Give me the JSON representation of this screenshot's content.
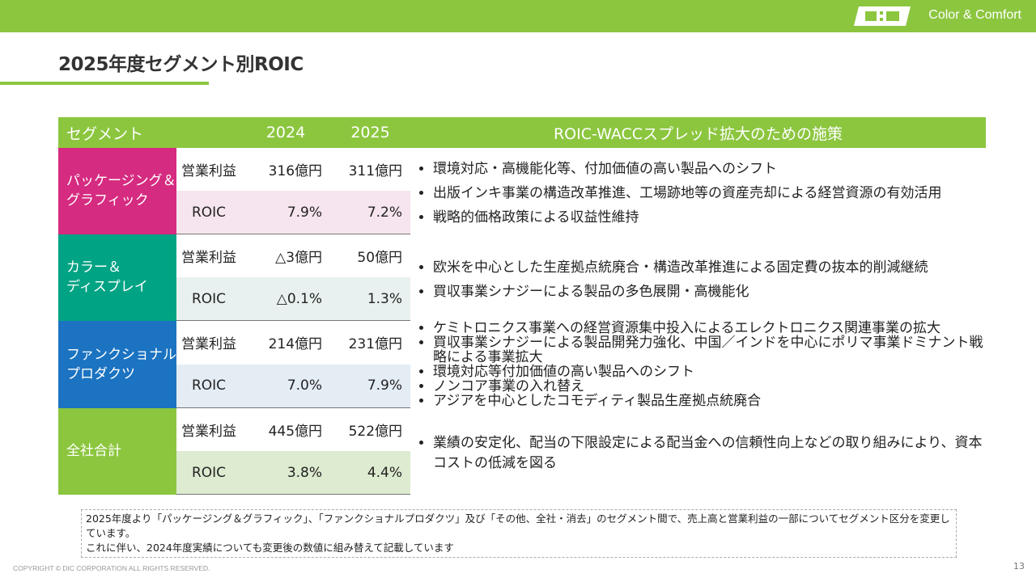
{
  "header": {
    "brand": "Color & Comfort"
  },
  "title": "2025年度セグメント別ROIC",
  "table": {
    "columns": [
      "セグメント",
      "2024",
      "2025",
      "ROIC-WACCスプレッド拡大のための施策"
    ],
    "segments": [
      {
        "name": [
          "パッケージング＆",
          "グラフィック"
        ],
        "color": "#d52b80",
        "shade": "#f6e5ee",
        "shade_top": false,
        "rows": [
          {
            "label": "営業利益",
            "v2024": "316億円",
            "v2025": "311億円"
          },
          {
            "label": "ROIC",
            "v2024": "7.9%",
            "v2025": "7.2%"
          }
        ],
        "measures": [
          "環境対応・高機能化等、付加価値の高い製品へのシフト",
          "出版インキ事業の構造改革推進、工場跡地等の資産売却による経営資源の有効活用",
          "戦略的価格政策による収益性維持"
        ]
      },
      {
        "name": [
          "カラー＆",
          "ディスプレイ"
        ],
        "color": "#00a384",
        "shade": "#e8f1ef",
        "shade_top": false,
        "rows": [
          {
            "label": "営業利益",
            "v2024": "△3億円",
            "v2025": "50億円"
          },
          {
            "label": "ROIC",
            "v2024": "△0.1%",
            "v2025": "1.3%"
          }
        ],
        "measures": [
          "欧米を中心とした生産拠点統廃合・構造改革推進による固定費の抜本的削減継続",
          "買収事業シナジーによる製品の多色展開・高機能化"
        ]
      },
      {
        "name": [
          "ファンクショナル",
          "プロダクツ"
        ],
        "color": "#1b73c1",
        "shade": "#e4ecf4",
        "shade_top": false,
        "rows": [
          {
            "label": "営業利益",
            "v2024": "214億円",
            "v2025": "231億円"
          },
          {
            "label": "ROIC",
            "v2024": "7.0%",
            "v2025": "7.9%"
          }
        ],
        "measures": [
          "ケミトロニクス事業への経営資源集中投入によるエレクトロニクス関連事業の拡大",
          "買収事業シナジーによる製品開発力強化、中国／インドを中心にポリマ事業ドミナント戦略による事業拡大",
          "環境対応等付加価値の高い製品へのシフト",
          "ノンコア事業の入れ替え",
          "アジアを中心としたコモディティ製品生産拠点統廃合"
        ]
      },
      {
        "name": [
          "全社合計"
        ],
        "color": "#8cc63f",
        "shade": "#ddebd0",
        "shade_top": false,
        "rows": [
          {
            "label": "営業利益",
            "v2024": "445億円",
            "v2025": "522億円"
          },
          {
            "label": "ROIC",
            "v2024": "3.8%",
            "v2025": "4.4%"
          }
        ],
        "measures": [
          "業績の安定化、配当の下限設定による配当金への信頼性向上などの取り組みにより、資本コストの低減を図る"
        ]
      }
    ]
  },
  "footnote": [
    "2025年度より「パッケージング＆グラフィック」、「ファンクショナルプロダクツ」及び「その他、全社・消去」のセグメント間で、売上高と営業利益の一部についてセグメント区分を変更しています。",
    "これに伴い、2024年度実績についても変更後の数値に組み替えて記載しています"
  ],
  "footer": {
    "copyright": "COPYRIGHT © DIC CORPORATION ALL RIGHTS RESERVED.",
    "page": "13"
  }
}
